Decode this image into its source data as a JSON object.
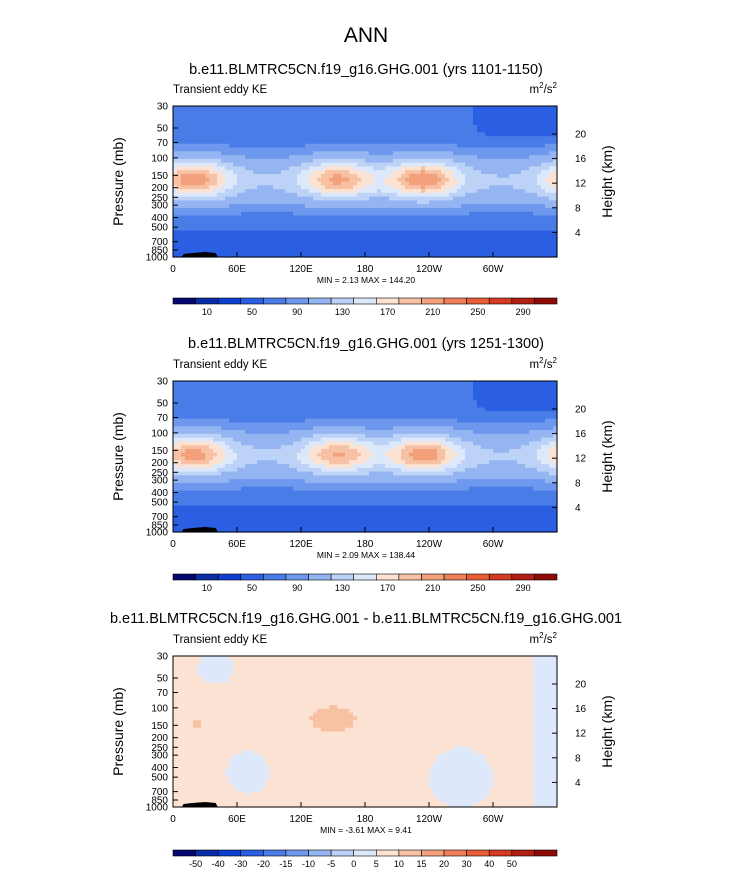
{
  "main_title": "ANN",
  "chart_data": [
    {
      "type": "heatmap",
      "title": "b.e11.BLMTRC5CN.f19_g16.GHG.001 (yrs 1101-1150)",
      "variable_label": "Transient eddy KE",
      "units": {
        "base": "m",
        "sup1": "2",
        "sep": "/s",
        "sup2": "2"
      },
      "ylabel": "Pressure (mb)",
      "ylabel_right": "Height (km)",
      "x_ticks": [
        "0",
        "60E",
        "120E",
        "180",
        "120W",
        "60W"
      ],
      "y_ticks": [
        "30",
        "50",
        "70",
        "100",
        "150",
        "200",
        "250",
        "300",
        "400",
        "500",
        "700",
        "850",
        "1000"
      ],
      "height_ticks": [
        "20",
        "16",
        "12",
        "8",
        "4"
      ],
      "stats": "MIN =   2.13  MAX = 144.20",
      "colorbar_labels": [
        "10",
        "50",
        "90",
        "130",
        "170",
        "210",
        "250",
        "290"
      ],
      "colorbar_colors": [
        "#05056e",
        "#0a2ca4",
        "#0f3fd0",
        "#2a5ee3",
        "#4a7ce8",
        "#6e98ee",
        "#95b5f2",
        "#bdd2f7",
        "#dde8fb",
        "#fbe2d2",
        "#f7c1a3",
        "#f3a07d",
        "#ee7f58",
        "#e85e37",
        "#d53b22",
        "#b41f13",
        "#8e0b06"
      ],
      "jets": [
        {
          "lon": 20,
          "lat": 0.0,
          "strength": 1.0
        },
        {
          "lon": 155,
          "lat": 0.0,
          "strength": 0.9
        },
        {
          "lon": 235,
          "lat": 0.0,
          "strength": 1.05
        }
      ]
    },
    {
      "type": "heatmap",
      "title": "b.e11.BLMTRC5CN.f19_g16.GHG.001 (yrs 1251-1300)",
      "variable_label": "Transient eddy KE",
      "units": {
        "base": "m",
        "sup1": "2",
        "sep": "/s",
        "sup2": "2"
      },
      "ylabel": "Pressure (mb)",
      "ylabel_right": "Height (km)",
      "x_ticks": [
        "0",
        "60E",
        "120E",
        "180",
        "120W",
        "60W"
      ],
      "y_ticks": [
        "30",
        "50",
        "70",
        "100",
        "150",
        "200",
        "250",
        "300",
        "400",
        "500",
        "700",
        "850",
        "1000"
      ],
      "height_ticks": [
        "20",
        "16",
        "12",
        "8",
        "4"
      ],
      "stats": "MIN =   2.09  MAX = 138.44",
      "colorbar_labels": [
        "10",
        "50",
        "90",
        "130",
        "170",
        "210",
        "250",
        "290"
      ],
      "colorbar_colors": [
        "#05056e",
        "#0a2ca4",
        "#0f3fd0",
        "#2a5ee3",
        "#4a7ce8",
        "#6e98ee",
        "#95b5f2",
        "#bdd2f7",
        "#dde8fb",
        "#fbe2d2",
        "#f7c1a3",
        "#f3a07d",
        "#ee7f58",
        "#e85e37",
        "#d53b22",
        "#b41f13",
        "#8e0b06"
      ],
      "jets": [
        {
          "lon": 20,
          "lat": 0.0,
          "strength": 0.95
        },
        {
          "lon": 155,
          "lat": 0.0,
          "strength": 0.88
        },
        {
          "lon": 235,
          "lat": 0.0,
          "strength": 1.0
        }
      ]
    },
    {
      "type": "heatmap",
      "title": "b.e11.BLMTRC5CN.f19_g16.GHG.001 - b.e11.BLMTRC5CN.f19_g16.GHG.001",
      "variable_label": "Transient eddy KE",
      "units": {
        "base": "m",
        "sup1": "2",
        "sep": "/s",
        "sup2": "2"
      },
      "ylabel": "Pressure (mb)",
      "ylabel_right": "Height (km)",
      "x_ticks": [
        "0",
        "60E",
        "120E",
        "180",
        "120W",
        "60W"
      ],
      "y_ticks": [
        "30",
        "50",
        "70",
        "100",
        "150",
        "200",
        "250",
        "300",
        "400",
        "500",
        "700",
        "850",
        "1000"
      ],
      "height_ticks": [
        "20",
        "16",
        "12",
        "8",
        "4"
      ],
      "stats": "MIN =  -3.61  MAX =   9.41",
      "colorbar_labels": [
        "-50",
        "-40",
        "-30",
        "-20",
        "-15",
        "-10",
        "-5",
        "0",
        "5",
        "10",
        "15",
        "20",
        "30",
        "40",
        "50"
      ],
      "colorbar_colors": [
        "#05056e",
        "#0a2ca4",
        "#0f3fd0",
        "#2a5ee3",
        "#4a7ce8",
        "#6e98ee",
        "#95b5f2",
        "#bdd2f7",
        "#dde8fb",
        "#fbe2d2",
        "#f7c1a3",
        "#f3a07d",
        "#ee7f58",
        "#e85e37",
        "#d53b22",
        "#b41f13",
        "#8e0b06"
      ]
    }
  ]
}
